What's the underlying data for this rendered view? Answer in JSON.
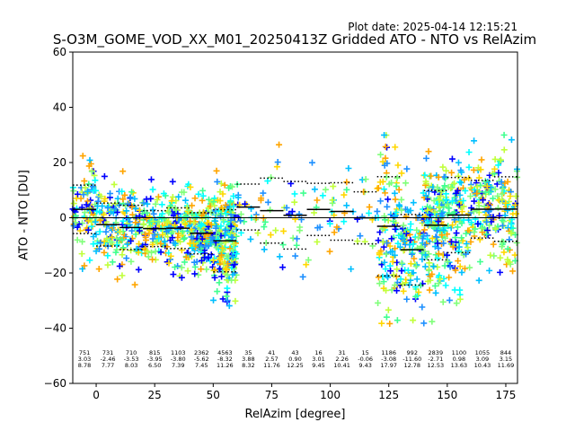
{
  "plot_date": "Plot date: 2025-04-14 12:15:21",
  "chart_data": {
    "type": "scatter",
    "title": "S-O3M_GOME_VOD_XX_M01_20250413Z Gridded ATO - NTO vs RelAzim",
    "xlabel": "RelAzim [degree]",
    "ylabel": "ATO - NTO [DU]",
    "xlim": [
      -10,
      180
    ],
    "ylim": [
      -60,
      60
    ],
    "xticks": [
      0,
      25,
      50,
      75,
      100,
      125,
      150,
      175
    ],
    "yticks": [
      -60,
      -40,
      -20,
      0,
      20,
      40,
      60
    ],
    "grid": false,
    "zero_line": true,
    "point_colors": [
      "#00ffff",
      "#40ff90",
      "#80ff7a",
      "#c0ff3a",
      "#ffd700",
      "#ffa500",
      "#0000ff",
      "#1e90ff",
      "#00bfff"
    ],
    "bins": [
      {
        "x": -5,
        "count": "751",
        "mean": "3.03",
        "std": "8.78"
      },
      {
        "x": 5,
        "count": "731",
        "mean": "-2.46",
        "std": "7.77"
      },
      {
        "x": 15,
        "count": "710",
        "mean": "-3.53",
        "std": "8.03"
      },
      {
        "x": 25,
        "count": "815",
        "mean": "-3.95",
        "std": "6.50"
      },
      {
        "x": 35,
        "count": "1103",
        "mean": "-3.80",
        "std": "7.39"
      },
      {
        "x": 45,
        "count": "2362",
        "mean": "-5.62",
        "std": "7.45"
      },
      {
        "x": 55,
        "count": "4563",
        "mean": "-8.32",
        "std": "11.26"
      },
      {
        "x": 65,
        "count": "35",
        "mean": "3.88",
        "std": "8.32"
      },
      {
        "x": 75,
        "count": "41",
        "mean": "2.57",
        "std": "11.76"
      },
      {
        "x": 85,
        "count": "43",
        "mean": "0.90",
        "std": "12.25"
      },
      {
        "x": 95,
        "count": "16",
        "mean": "3.01",
        "std": "9.45"
      },
      {
        "x": 105,
        "count": "31",
        "mean": "2.26",
        "std": "10.41"
      },
      {
        "x": 115,
        "count": "15",
        "mean": "-0.06",
        "std": "9.43"
      },
      {
        "x": 125,
        "count": "1186",
        "mean": "-3.08",
        "std": "17.97"
      },
      {
        "x": 135,
        "count": "992",
        "mean": "-11.60",
        "std": "12.78"
      },
      {
        "x": 145,
        "count": "2839",
        "mean": "-2.71",
        "std": "12.53"
      },
      {
        "x": 155,
        "count": "1100",
        "mean": "0.98",
        "std": "13.63"
      },
      {
        "x": 165,
        "count": "1055",
        "mean": "3.09",
        "std": "10.43"
      },
      {
        "x": 175,
        "count": "844",
        "mean": "3.15",
        "std": "11.69"
      }
    ]
  }
}
